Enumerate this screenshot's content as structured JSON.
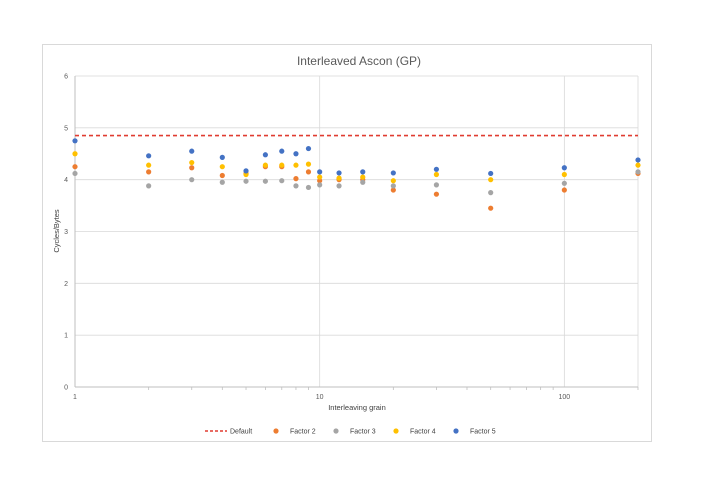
{
  "chart_data": {
    "type": "scatter",
    "title": "Interleaved Ascon (GP)",
    "xlabel": "Interleaving grain",
    "ylabel": "Cycles/Bytes",
    "xscale": "log",
    "xlim": [
      1,
      200
    ],
    "ylim": [
      0,
      6
    ],
    "xticks": [
      "1",
      "10",
      "100"
    ],
    "yticks": [
      "0",
      "1",
      "2",
      "3",
      "4",
      "5",
      "6"
    ],
    "grid": true,
    "legend_position": "bottom",
    "default_line": {
      "name": "Default",
      "value": 4.85,
      "color": "#e03c31",
      "style": "dashed"
    },
    "series": [
      {
        "name": "Factor 2",
        "color": "#ed7d31",
        "x": [
          1,
          2,
          3,
          4,
          5,
          6,
          7,
          8,
          9,
          10,
          12,
          15,
          20,
          30,
          50,
          100,
          200
        ],
        "values": [
          4.25,
          4.15,
          4.23,
          4.08,
          4.12,
          4.25,
          4.25,
          4.02,
          4.15,
          3.98,
          4.0,
          4.0,
          3.8,
          3.72,
          3.45,
          3.8,
          4.12
        ]
      },
      {
        "name": "Factor 3",
        "color": "#a5a5a5",
        "x": [
          1,
          2,
          3,
          4,
          5,
          6,
          7,
          8,
          9,
          10,
          12,
          15,
          20,
          30,
          50,
          100,
          200
        ],
        "values": [
          4.12,
          3.88,
          4.0,
          3.95,
          3.97,
          3.97,
          3.98,
          3.88,
          3.85,
          3.9,
          3.88,
          3.95,
          3.88,
          3.9,
          3.75,
          3.93,
          4.15
        ]
      },
      {
        "name": "Factor 4",
        "color": "#ffc000",
        "x": [
          1,
          2,
          3,
          4,
          5,
          6,
          7,
          8,
          9,
          10,
          12,
          15,
          20,
          30,
          50,
          100,
          200
        ],
        "values": [
          4.5,
          4.28,
          4.33,
          4.25,
          4.1,
          4.28,
          4.28,
          4.28,
          4.3,
          4.05,
          4.03,
          4.05,
          3.98,
          4.1,
          4.0,
          4.1,
          4.28
        ]
      },
      {
        "name": "Factor 5",
        "color": "#4472c4",
        "x": [
          1,
          2,
          3,
          4,
          5,
          6,
          7,
          8,
          9,
          10,
          12,
          15,
          20,
          30,
          50,
          100,
          200
        ],
        "values": [
          4.75,
          4.46,
          4.55,
          4.43,
          4.17,
          4.48,
          4.55,
          4.5,
          4.6,
          4.15,
          4.13,
          4.15,
          4.13,
          4.2,
          4.12,
          4.23,
          4.38
        ]
      }
    ]
  }
}
